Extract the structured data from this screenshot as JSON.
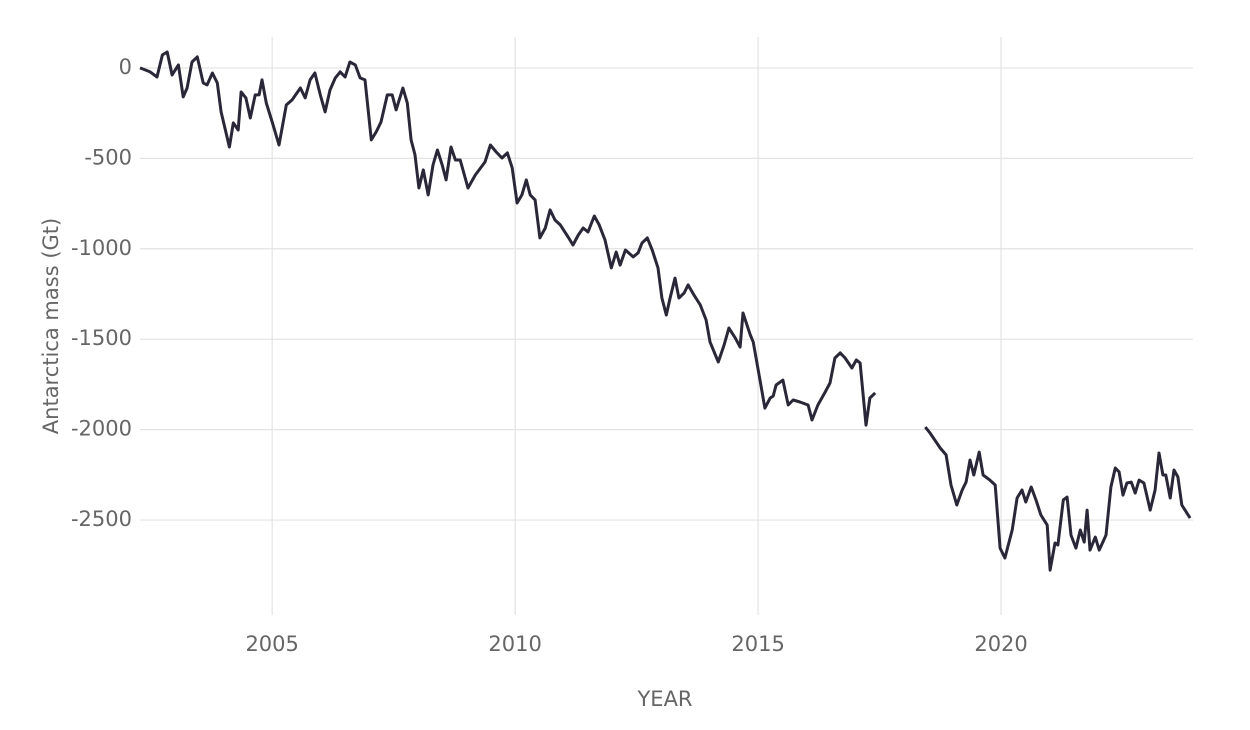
{
  "chart_data": {
    "type": "line",
    "y_label": "Antarctica mass (Gt)",
    "x_label": "YEAR",
    "x": [
      2002.28,
      2002.49,
      2002.63,
      2002.74,
      2002.84,
      2002.94,
      2003.07,
      2003.17,
      2003.25,
      2003.35,
      2003.46,
      2003.58,
      2003.66,
      2003.77,
      2003.87,
      2003.95,
      2004.12,
      2004.2,
      2004.3,
      2004.36,
      2004.46,
      2004.55,
      2004.65,
      2004.73,
      2004.79,
      2004.88,
      2005.0,
      2005.14,
      2005.29,
      2005.41,
      2005.58,
      2005.68,
      2005.78,
      2005.88,
      2005.99,
      2006.09,
      2006.19,
      2006.3,
      2006.4,
      2006.5,
      2006.6,
      2006.71,
      2006.81,
      2006.91,
      2007.04,
      2007.14,
      2007.24,
      2007.37,
      2007.47,
      2007.55,
      2007.69,
      2007.78,
      2007.86,
      2007.94,
      2008.02,
      2008.11,
      2008.21,
      2008.31,
      2008.4,
      2008.5,
      2008.58,
      2008.68,
      2008.77,
      2008.87,
      2009.03,
      2009.18,
      2009.38,
      2009.49,
      2009.61,
      2009.73,
      2009.84,
      2009.94,
      2010.04,
      2010.14,
      2010.23,
      2010.31,
      2010.41,
      2010.51,
      2010.62,
      2010.72,
      2010.82,
      2010.93,
      2011.09,
      2011.19,
      2011.3,
      2011.4,
      2011.5,
      2011.63,
      2011.73,
      2011.85,
      2011.98,
      2012.08,
      2012.16,
      2012.27,
      2012.43,
      2012.53,
      2012.61,
      2012.72,
      2012.82,
      2012.9,
      2012.94,
      2013.02,
      2013.11,
      2013.19,
      2013.29,
      2013.37,
      2013.48,
      2013.56,
      2013.68,
      2013.81,
      2013.93,
      2014.01,
      2014.18,
      2014.3,
      2014.4,
      2014.53,
      2014.63,
      2014.69,
      2014.84,
      2014.9,
      2015.04,
      2015.14,
      2015.25,
      2015.31,
      2015.37,
      2015.51,
      2015.62,
      2015.72,
      2015.86,
      2016.03,
      2016.11,
      2016.23,
      2016.38,
      2016.48,
      2016.58,
      2016.69,
      2016.79,
      2016.93,
      2017.02,
      2017.1,
      2017.22,
      2017.3,
      2017.41,
      null,
      2018.44,
      2018.54,
      2018.75,
      2018.87,
      2018.97,
      2019.09,
      2019.2,
      2019.28,
      2019.36,
      2019.44,
      2019.55,
      2019.63,
      2019.77,
      2019.88,
      2019.98,
      2020.08,
      2020.23,
      2020.33,
      2020.43,
      2020.51,
      2020.62,
      2020.72,
      2020.82,
      2020.95,
      2021.01,
      2021.11,
      2021.17,
      2021.28,
      2021.36,
      2021.44,
      2021.54,
      2021.63,
      2021.71,
      2021.77,
      2021.83,
      2021.94,
      2022.02,
      2022.16,
      2022.26,
      2022.35,
      2022.43,
      2022.51,
      2022.59,
      2022.68,
      2022.76,
      2022.84,
      2022.94,
      2023.07,
      2023.17,
      2023.25,
      2023.33,
      2023.39,
      2023.48,
      2023.56,
      2023.64,
      2023.72,
      2023.89
    ],
    "series": [
      {
        "color": "#2a2838",
        "values": [
          0,
          -22,
          -50,
          72,
          88,
          -39,
          17,
          -160,
          -111,
          33,
          61,
          -83,
          -94,
          -28,
          -83,
          -243,
          -437,
          -304,
          -343,
          -133,
          -166,
          -277,
          -149,
          -149,
          -66,
          -194,
          -299,
          -426,
          -205,
          -177,
          -111,
          -166,
          -66,
          -28,
          -149,
          -243,
          -122,
          -55,
          -22,
          -50,
          33,
          17,
          -55,
          -66,
          -398,
          -354,
          -299,
          -149,
          -149,
          -232,
          -111,
          -194,
          -398,
          -481,
          -664,
          -564,
          -702,
          -537,
          -454,
          -537,
          -619,
          -437,
          -509,
          -509,
          -664,
          -592,
          -520,
          -426,
          -465,
          -498,
          -470,
          -553,
          -747,
          -702,
          -619,
          -702,
          -730,
          -940,
          -885,
          -785,
          -841,
          -868,
          -935,
          -979,
          -924,
          -885,
          -907,
          -819,
          -868,
          -951,
          -1106,
          -1018,
          -1090,
          -1007,
          -1045,
          -1023,
          -968,
          -940,
          -1007,
          -1073,
          -1106,
          -1272,
          -1366,
          -1272,
          -1162,
          -1272,
          -1244,
          -1200,
          -1256,
          -1311,
          -1394,
          -1515,
          -1626,
          -1532,
          -1438,
          -1494,
          -1543,
          -1355,
          -1477,
          -1515,
          -1726,
          -1881,
          -1825,
          -1814,
          -1753,
          -1726,
          -1864,
          -1836,
          -1847,
          -1864,
          -1947,
          -1864,
          -1792,
          -1742,
          -1604,
          -1576,
          -1604,
          -1659,
          -1615,
          -1631,
          -1975,
          -1825,
          -1797,
          null,
          -1986,
          -2019,
          -2102,
          -2140,
          -2306,
          -2417,
          -2334,
          -2290,
          -2168,
          -2251,
          -2124,
          -2251,
          -2279,
          -2306,
          -2655,
          -2710,
          -2555,
          -2378,
          -2334,
          -2400,
          -2317,
          -2389,
          -2472,
          -2528,
          -2777,
          -2627,
          -2638,
          -2389,
          -2373,
          -2583,
          -2655,
          -2555,
          -2622,
          -2445,
          -2666,
          -2594,
          -2666,
          -2583,
          -2317,
          -2212,
          -2234,
          -2362,
          -2295,
          -2290,
          -2351,
          -2279,
          -2295,
          -2445,
          -2334,
          -2129,
          -2251,
          -2251,
          -2378,
          -2223,
          -2262,
          -2417,
          -2489
        ]
      }
    ],
    "xlim": [
      2002.28,
      2023.95
    ],
    "ylim": [
      -3025,
      171
    ],
    "xticks": [
      2005,
      2010,
      2015,
      2020
    ],
    "yticks": [
      -2500,
      -2000,
      -1500,
      -1000,
      -500,
      0
    ],
    "grid": true
  }
}
